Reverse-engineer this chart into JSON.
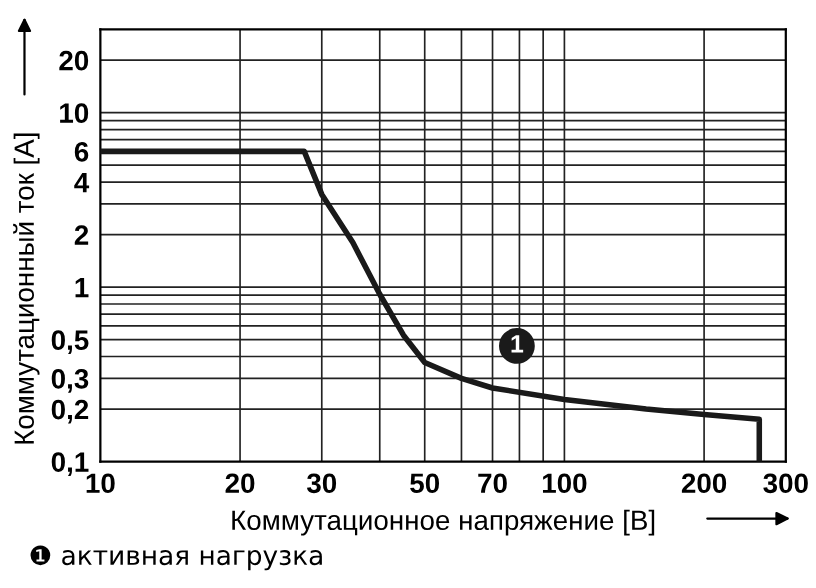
{
  "chart_data": {
    "type": "line",
    "xlabel": "Коммутационное напряжение [В]",
    "ylabel": "Коммутационный ток [А]",
    "x": [
      10,
      27.5,
      30,
      35,
      40,
      45,
      50,
      60,
      70,
      100,
      150,
      200,
      263,
      263
    ],
    "series": [
      {
        "color": "#1a1a1a",
        "values": [
          6,
          6,
          3.4,
          1.8,
          0.91,
          0.53,
          0.37,
          0.3,
          0.264,
          0.227,
          0.2,
          0.186,
          0.175,
          0.1
        ]
      }
    ],
    "log": "xy",
    "xlim": [
      10,
      300
    ],
    "ylim": [
      0.1,
      30
    ],
    "xticks": [
      10,
      20,
      30,
      50,
      70,
      100,
      200,
      300
    ],
    "yticks": [
      {
        "value": 0.1,
        "label": "0,1"
      },
      {
        "value": 0.2,
        "label": "0,2"
      },
      {
        "value": 0.3,
        "label": "0,3"
      },
      {
        "value": 0.5,
        "label": "0,5"
      },
      1,
      2,
      4,
      6,
      10,
      20
    ],
    "grid": true,
    "marker": "none",
    "line_style": "solid",
    "annotations": [
      {
        "text": "1",
        "x": 79,
        "y": 0.46
      },
      "❶ активная нагрузка"
    ]
  }
}
